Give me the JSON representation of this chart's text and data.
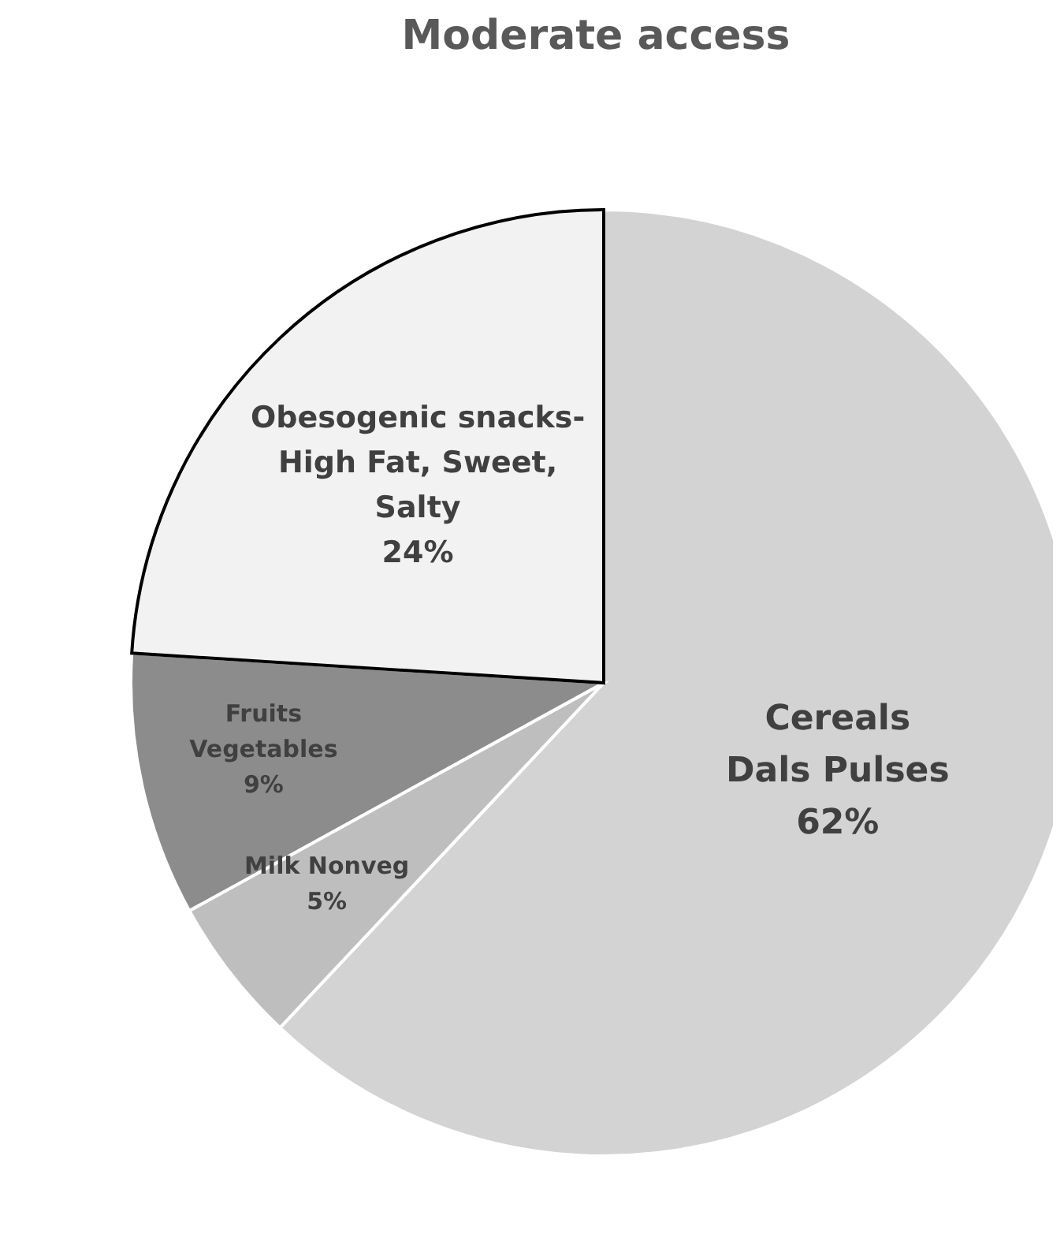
{
  "chart_data": {
    "type": "pie",
    "title": "Moderate access",
    "categories": [
      "Cereals\nDals  Pulses",
      "Milk Nonveg",
      "Fruits\nVegetables",
      "Obesogenic snacks-\nHigh Fat, Sweet,\nSalty"
    ],
    "values": [
      62,
      5,
      9,
      24
    ],
    "colors": [
      "#d3d3d3",
      "#bebebe",
      "#8c8c8c",
      "#f2f2f2"
    ],
    "value_labels": [
      "62%",
      "5%",
      "9%",
      "24%"
    ]
  }
}
